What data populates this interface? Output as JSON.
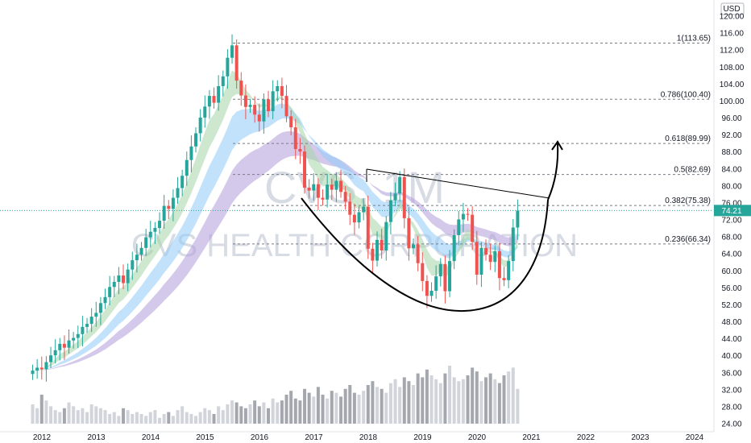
{
  "chart_data": {
    "type": "candlestick",
    "currency": "USD",
    "watermark": {
      "symbol": "CVS, 1M",
      "name": "CVS HEALTH CORPORATION"
    },
    "last_price": "74.21",
    "colors": {
      "up": "#26a69a",
      "down": "#ef5350",
      "price_line": "#26a69a",
      "ema_fast": "#a5d6a7",
      "ema_mid": "#90caf9",
      "ema_slow": "#b39ddb",
      "ema_red": "#f4a6a6",
      "volume": "#b2b5be"
    },
    "y_ticks": [
      "120.00",
      "116.00",
      "112.00",
      "108.00",
      "104.00",
      "100.00",
      "96.00",
      "92.00",
      "88.00",
      "84.00",
      "80.00",
      "76.00",
      "72.00",
      "68.00",
      "64.00",
      "60.00",
      "56.00",
      "52.00",
      "48.00",
      "44.00",
      "40.00",
      "36.00",
      "32.00",
      "28.00",
      "24.00"
    ],
    "ylim": [
      24,
      120
    ],
    "x_ticks": [
      "2012",
      "2013",
      "2014",
      "2015",
      "2016",
      "2017",
      "2018",
      "2019",
      "2020",
      "2021",
      "2022",
      "2023",
      "2024"
    ],
    "fib_levels": [
      {
        "level": 1,
        "price": 113.65,
        "label": "1(113.65)"
      },
      {
        "level": 0.786,
        "price": 100.4,
        "label": "0.786(100.40)"
      },
      {
        "level": 0.618,
        "price": 89.99,
        "label": "0.618(89.99)"
      },
      {
        "level": 0.5,
        "price": 82.69,
        "label": "0.5(82.69)"
      },
      {
        "level": 0.382,
        "price": 75.38,
        "label": "0.382(75.38)"
      },
      {
        "level": 0.236,
        "price": 66.34,
        "label": "0.236(66.34)"
      }
    ],
    "monthly_close": [
      36.5,
      37.2,
      36.8,
      38.5,
      40.1,
      41.3,
      42.8,
      41.9,
      43.6,
      44.2,
      45.1,
      46.8,
      47.5,
      49.2,
      50.1,
      52.4,
      53.8,
      56.2,
      57.4,
      58.9,
      57.1,
      60.3,
      62.5,
      63.8,
      65.4,
      67.9,
      69.2,
      70.1,
      71.8,
      75.3,
      74.6,
      77.2,
      79.5,
      82.4,
      86.1,
      89.3,
      92.4,
      96.1,
      98.7,
      101.2,
      99.6,
      103.5,
      105.8,
      110.2,
      113.1,
      104.8,
      101.3,
      98.6,
      99.1,
      96.8,
      95.2,
      100.4,
      97.6,
      102.3,
      103.5,
      101.2,
      96.4,
      93.8,
      88.7,
      88.1,
      79.6,
      78.9,
      80.4,
      77.2,
      76.8,
      80.3,
      79.1,
      81.2,
      78.6,
      76.3,
      73.2,
      71.4,
      73.8,
      75.1,
      65.2,
      62.4,
      67.3,
      64.8,
      71.5,
      76.6,
      78.2,
      82.1,
      72.4,
      65.3,
      66.2,
      61.8,
      57.6,
      54.1,
      55.3,
      58.7,
      61.6,
      55.2,
      62.3,
      68.4,
      72.1,
      73.4,
      73.2,
      66.8,
      59.1,
      65.4,
      63.8,
      62.1,
      64.6,
      58.3,
      57.8,
      62.3,
      70.2,
      74.21
    ],
    "volume_m": [
      28,
      26,
      33,
      30,
      27,
      25,
      24,
      26,
      29,
      27,
      25,
      26,
      24,
      28,
      27,
      26,
      25,
      23,
      24,
      22,
      26,
      25,
      23,
      24,
      23,
      22,
      24,
      25,
      21,
      23,
      24,
      22,
      25,
      27,
      24,
      23,
      22,
      24,
      26,
      25,
      23,
      27,
      25,
      28,
      30,
      29,
      27,
      26,
      28,
      30,
      27,
      29,
      26,
      31,
      29,
      30,
      33,
      35,
      31,
      30,
      36,
      34,
      32,
      37,
      33,
      31,
      35,
      34,
      32,
      36,
      38,
      34,
      33,
      35,
      38,
      40,
      37,
      36,
      34,
      39,
      41,
      37,
      42,
      40,
      38,
      44,
      42,
      46,
      43,
      41,
      39,
      44,
      48,
      42,
      40,
      41,
      43,
      47,
      45,
      40,
      42,
      44,
      41,
      39,
      43,
      45,
      47,
      36
    ]
  }
}
